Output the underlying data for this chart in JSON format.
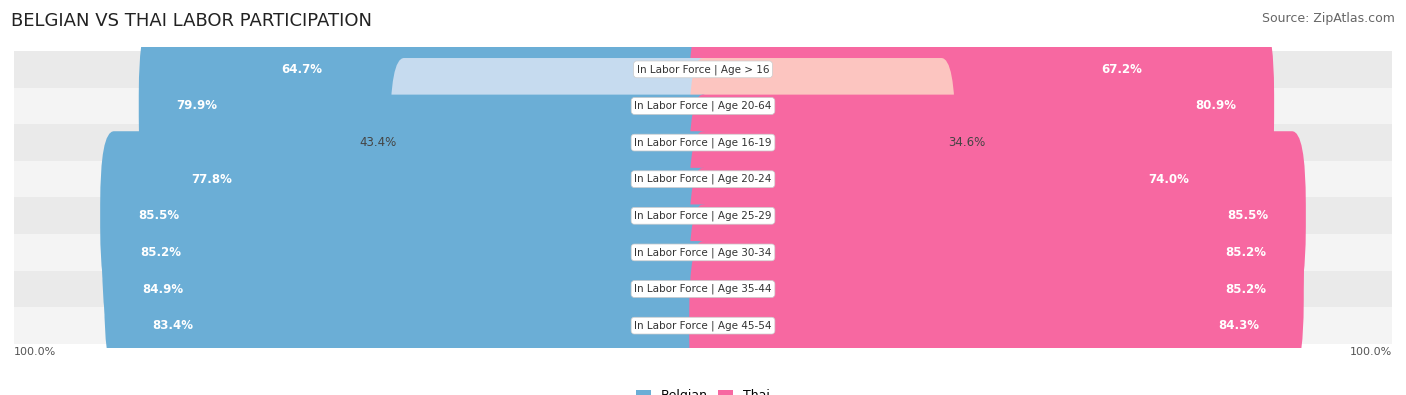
{
  "title": "BELGIAN VS THAI LABOR PARTICIPATION",
  "source": "Source: ZipAtlas.com",
  "categories": [
    "In Labor Force | Age > 16",
    "In Labor Force | Age 20-64",
    "In Labor Force | Age 16-19",
    "In Labor Force | Age 20-24",
    "In Labor Force | Age 25-29",
    "In Labor Force | Age 30-34",
    "In Labor Force | Age 35-44",
    "In Labor Force | Age 45-54"
  ],
  "belgian_values": [
    64.7,
    79.9,
    43.4,
    77.8,
    85.5,
    85.2,
    84.9,
    83.4
  ],
  "thai_values": [
    67.2,
    80.9,
    34.6,
    74.0,
    85.5,
    85.2,
    85.2,
    84.3
  ],
  "belgian_color": "#6baed6",
  "thai_color": "#f768a1",
  "belgian_color_light": "#c6dbef",
  "thai_color_light": "#fcc5c0",
  "background_color": "#ffffff",
  "label_color_dark": "#444444",
  "label_color_white": "#ffffff",
  "axis_label_left": "100.0%",
  "axis_label_right": "100.0%",
  "legend_belgian": "Belgian",
  "legend_thai": "Thai",
  "title_fontsize": 13,
  "source_fontsize": 9,
  "bar_label_fontsize": 8.5,
  "category_fontsize": 7.5,
  "max_value": 100.0,
  "row_colors": [
    "#eaeaea",
    "#f4f4f4",
    "#eaeaea",
    "#f4f4f4",
    "#eaeaea",
    "#f4f4f4",
    "#eaeaea",
    "#f4f4f4"
  ]
}
